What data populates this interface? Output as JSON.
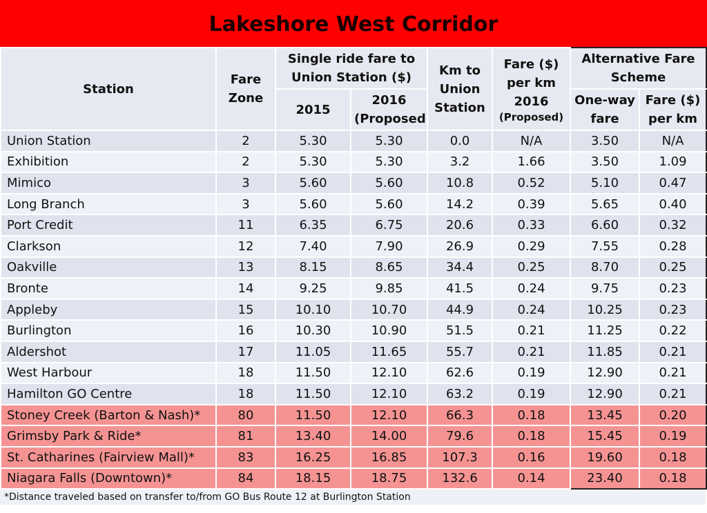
{
  "title": "Lakeshore West Corridor",
  "table": {
    "header": {
      "station": "Station",
      "fare_zone": "Fare Zone",
      "single_ride": "Single ride fare to Union Station ($)",
      "y2015": "2015",
      "y2016": "2016 (Proposed)",
      "km": "Km to Union Station",
      "per_km": "Fare ($) per km 2016",
      "per_km_note": "(Proposed)",
      "alternative": "Alternative Fare Scheme",
      "one_way": "One-way fare",
      "alt_per_km": "Fare ($) per km"
    },
    "rows": [
      [
        "Union Station",
        "2",
        "5.30",
        "5.30",
        "0.0",
        "N/A",
        "3.50",
        "N/A"
      ],
      [
        "Exhibition",
        "2",
        "5.30",
        "5.30",
        "3.2",
        "1.66",
        "3.50",
        "1.09"
      ],
      [
        "Mimico",
        "3",
        "5.60",
        "5.60",
        "10.8",
        "0.52",
        "5.10",
        "0.47"
      ],
      [
        "Long Branch",
        "3",
        "5.60",
        "5.60",
        "14.2",
        "0.39",
        "5.65",
        "0.40"
      ],
      [
        "Port Credit",
        "11",
        "6.35",
        "6.75",
        "20.6",
        "0.33",
        "6.60",
        "0.32"
      ],
      [
        "Clarkson",
        "12",
        "7.40",
        "7.90",
        "26.9",
        "0.29",
        "7.55",
        "0.28"
      ],
      [
        "Oakville",
        "13",
        "8.15",
        "8.65",
        "34.4",
        "0.25",
        "8.70",
        "0.25"
      ],
      [
        "Bronte",
        "14",
        "9.25",
        "9.85",
        "41.5",
        "0.24",
        "9.75",
        "0.23"
      ],
      [
        "Appleby",
        "15",
        "10.10",
        "10.70",
        "44.9",
        "0.24",
        "10.25",
        "0.23"
      ],
      [
        "Burlington",
        "16",
        "10.30",
        "10.90",
        "51.5",
        "0.21",
        "11.25",
        "0.22"
      ],
      [
        "Aldershot",
        "17",
        "11.05",
        "11.65",
        "55.7",
        "0.21",
        "11.85",
        "0.21"
      ],
      [
        "West Harbour",
        "18",
        "11.50",
        "12.10",
        "62.6",
        "0.19",
        "12.90",
        "0.21"
      ],
      [
        "Hamilton GO Centre",
        "18",
        "11.50",
        "12.10",
        "63.2",
        "0.19",
        "12.90",
        "0.21"
      ],
      [
        "Stoney Creek (Barton & Nash)*",
        "80",
        "11.50",
        "12.10",
        "66.3",
        "0.18",
        "13.45",
        "0.20"
      ],
      [
        "Grimsby Park & Ride*",
        "81",
        "13.40",
        "14.00",
        "79.6",
        "0.18",
        "15.45",
        "0.19"
      ],
      [
        "St. Catharines (Fairview Mall)*",
        "83",
        "16.25",
        "16.85",
        "107.3",
        "0.16",
        "19.60",
        "0.18"
      ],
      [
        "Niagara Falls (Downtown)*",
        "84",
        "18.15",
        "18.75",
        "132.6",
        "0.14",
        "23.40",
        "0.18"
      ]
    ]
  },
  "footnote": "*Distance traveled based on transfer to/from GO Bus Route 12 at Burlington Station"
}
